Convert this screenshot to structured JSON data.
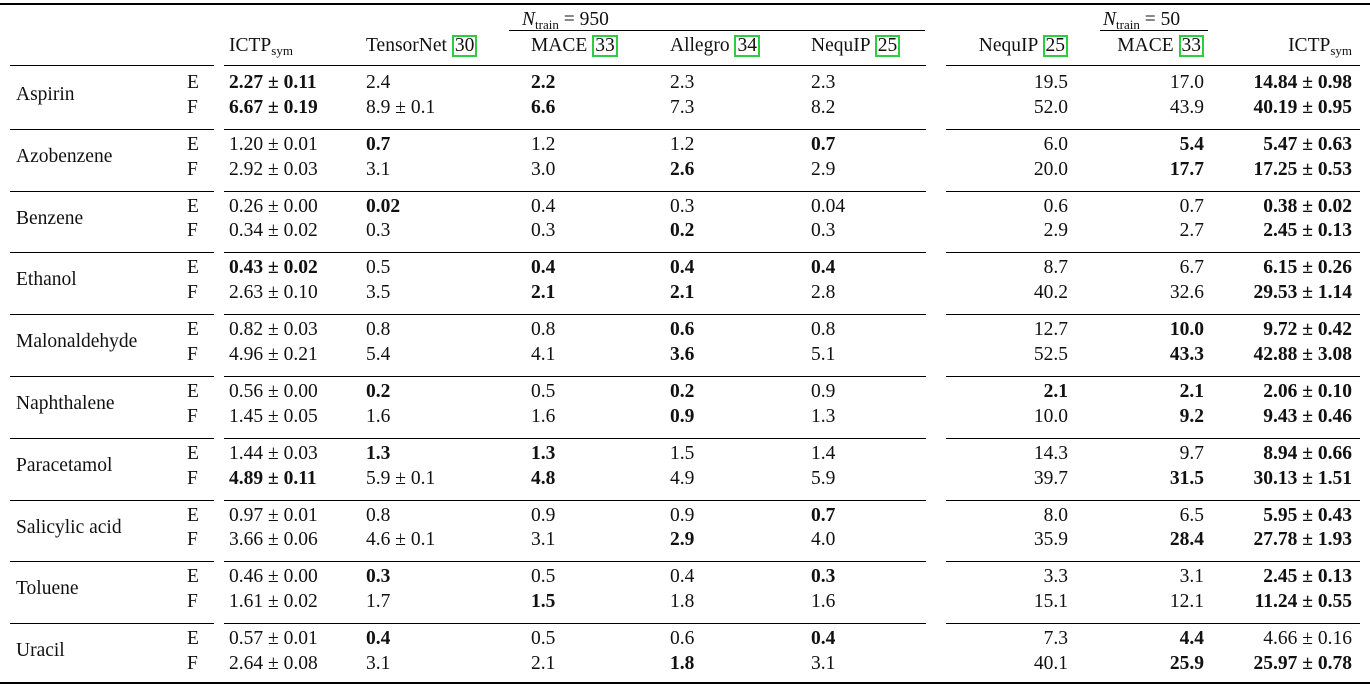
{
  "header": {
    "group_950": {
      "label_n": "N",
      "label_sub": "train",
      "label_rest": " = 950"
    },
    "group_50": {
      "label_n": "N",
      "label_sub": "train",
      "label_rest": " = 50"
    },
    "cols": [
      {
        "name": "ICTP",
        "sub": "sym",
        "ref": ""
      },
      {
        "name": "TensorNet ",
        "sub": "",
        "ref": "30"
      },
      {
        "name": "MACE ",
        "sub": "",
        "ref": "33"
      },
      {
        "name": "Allegro ",
        "sub": "",
        "ref": "34"
      },
      {
        "name": "NequIP ",
        "sub": "",
        "ref": "25"
      },
      {
        "name": "NequIP ",
        "sub": "",
        "ref": "25"
      },
      {
        "name": "MACE ",
        "sub": "",
        "ref": "33"
      },
      {
        "name": "ICTP",
        "sub": "sym",
        "ref": ""
      }
    ]
  },
  "molecules": [
    {
      "name": "Aspirin",
      "rows": [
        {
          "label": "E",
          "values": [
            "2.27 ± 0.11",
            "2.4",
            "2.2",
            "2.3",
            "2.3",
            "19.5",
            "17.0",
            "14.84 ± 0.98"
          ],
          "bold": [
            true,
            false,
            true,
            false,
            false,
            false,
            false,
            true
          ]
        },
        {
          "label": "F",
          "values": [
            "6.67 ± 0.19",
            "8.9 ± 0.1",
            "6.6",
            "7.3",
            "8.2",
            "52.0",
            "43.9",
            "40.19 ± 0.95"
          ],
          "bold": [
            true,
            false,
            true,
            false,
            false,
            false,
            false,
            true
          ]
        }
      ]
    },
    {
      "name": "Azobenzene",
      "rows": [
        {
          "label": "E",
          "values": [
            "1.20 ± 0.01",
            "0.7",
            "1.2",
            "1.2",
            "0.7",
            "6.0",
            "5.4",
            "5.47 ± 0.63"
          ],
          "bold": [
            false,
            true,
            false,
            false,
            true,
            false,
            true,
            true
          ]
        },
        {
          "label": "F",
          "values": [
            "2.92 ± 0.03",
            "3.1",
            "3.0",
            "2.6",
            "2.9",
            "20.0",
            "17.7",
            "17.25 ± 0.53"
          ],
          "bold": [
            false,
            false,
            false,
            true,
            false,
            false,
            true,
            true
          ]
        }
      ]
    },
    {
      "name": "Benzene",
      "rows": [
        {
          "label": "E",
          "values": [
            "0.26 ± 0.00",
            "0.02",
            "0.4",
            "0.3",
            "0.04",
            "0.6",
            "0.7",
            "0.38 ± 0.02"
          ],
          "bold": [
            false,
            true,
            false,
            false,
            false,
            false,
            false,
            true
          ]
        },
        {
          "label": "F",
          "values": [
            "0.34 ± 0.02",
            "0.3",
            "0.3",
            "0.2",
            "0.3",
            "2.9",
            "2.7",
            "2.45 ± 0.13"
          ],
          "bold": [
            false,
            false,
            false,
            true,
            false,
            false,
            false,
            true
          ]
        }
      ]
    },
    {
      "name": "Ethanol",
      "rows": [
        {
          "label": "E",
          "values": [
            "0.43 ± 0.02",
            "0.5",
            "0.4",
            "0.4",
            "0.4",
            "8.7",
            "6.7",
            "6.15 ± 0.26"
          ],
          "bold": [
            true,
            false,
            true,
            true,
            true,
            false,
            false,
            true
          ]
        },
        {
          "label": "F",
          "values": [
            "2.63 ± 0.10",
            "3.5",
            "2.1",
            "2.1",
            "2.8",
            "40.2",
            "32.6",
            "29.53 ± 1.14"
          ],
          "bold": [
            false,
            false,
            true,
            true,
            false,
            false,
            false,
            true
          ]
        }
      ]
    },
    {
      "name": "Malonaldehyde",
      "rows": [
        {
          "label": "E",
          "values": [
            "0.82 ± 0.03",
            "0.8",
            "0.8",
            "0.6",
            "0.8",
            "12.7",
            "10.0",
            "9.72 ± 0.42"
          ],
          "bold": [
            false,
            false,
            false,
            true,
            false,
            false,
            true,
            true
          ]
        },
        {
          "label": "F",
          "values": [
            "4.96 ± 0.21",
            "5.4",
            "4.1",
            "3.6",
            "5.1",
            "52.5",
            "43.3",
            "42.88 ± 3.08"
          ],
          "bold": [
            false,
            false,
            false,
            true,
            false,
            false,
            true,
            true
          ]
        }
      ]
    },
    {
      "name": "Naphthalene",
      "rows": [
        {
          "label": "E",
          "values": [
            "0.56 ± 0.00",
            "0.2",
            "0.5",
            "0.2",
            "0.9",
            "2.1",
            "2.1",
            "2.06 ± 0.10"
          ],
          "bold": [
            false,
            true,
            false,
            true,
            false,
            true,
            true,
            true
          ]
        },
        {
          "label": "F",
          "values": [
            "1.45 ± 0.05",
            "1.6",
            "1.6",
            "0.9",
            "1.3",
            "10.0",
            "9.2",
            "9.43 ± 0.46"
          ],
          "bold": [
            false,
            false,
            false,
            true,
            false,
            false,
            true,
            true
          ]
        }
      ]
    },
    {
      "name": "Paracetamol",
      "rows": [
        {
          "label": "E",
          "values": [
            "1.44 ± 0.03",
            "1.3",
            "1.3",
            "1.5",
            "1.4",
            "14.3",
            "9.7",
            "8.94 ± 0.66"
          ],
          "bold": [
            false,
            true,
            true,
            false,
            false,
            false,
            false,
            true
          ]
        },
        {
          "label": "F",
          "values": [
            "4.89 ± 0.11",
            "5.9 ± 0.1",
            "4.8",
            "4.9",
            "5.9",
            "39.7",
            "31.5",
            "30.13 ± 1.51"
          ],
          "bold": [
            true,
            false,
            true,
            false,
            false,
            false,
            true,
            true
          ]
        }
      ]
    },
    {
      "name": "Salicylic acid",
      "rows": [
        {
          "label": "E",
          "values": [
            "0.97 ± 0.01",
            "0.8",
            "0.9",
            "0.9",
            "0.7",
            "8.0",
            "6.5",
            "5.95 ± 0.43"
          ],
          "bold": [
            false,
            false,
            false,
            false,
            true,
            false,
            false,
            true
          ]
        },
        {
          "label": "F",
          "values": [
            "3.66 ± 0.06",
            "4.6 ± 0.1",
            "3.1",
            "2.9",
            "4.0",
            "35.9",
            "28.4",
            "27.78 ± 1.93"
          ],
          "bold": [
            false,
            false,
            false,
            true,
            false,
            false,
            true,
            true
          ]
        }
      ]
    },
    {
      "name": "Toluene",
      "rows": [
        {
          "label": "E",
          "values": [
            "0.46 ± 0.00",
            "0.3",
            "0.5",
            "0.4",
            "0.3",
            "3.3",
            "3.1",
            "2.45 ± 0.13"
          ],
          "bold": [
            false,
            true,
            false,
            false,
            true,
            false,
            false,
            true
          ]
        },
        {
          "label": "F",
          "values": [
            "1.61 ± 0.02",
            "1.7",
            "1.5",
            "1.8",
            "1.6",
            "15.1",
            "12.1",
            "11.24 ± 0.55"
          ],
          "bold": [
            false,
            false,
            true,
            false,
            false,
            false,
            false,
            true
          ]
        }
      ]
    },
    {
      "name": "Uracil",
      "rows": [
        {
          "label": "E",
          "values": [
            "0.57 ± 0.01",
            "0.4",
            "0.5",
            "0.6",
            "0.4",
            "7.3",
            "4.4",
            "4.66 ± 0.16"
          ],
          "bold": [
            false,
            true,
            false,
            false,
            true,
            false,
            true,
            false
          ]
        },
        {
          "label": "F",
          "values": [
            "2.64 ± 0.08",
            "3.1",
            "2.1",
            "1.8",
            "3.1",
            "40.1",
            "25.9",
            "25.97 ± 0.78"
          ],
          "bold": [
            false,
            false,
            false,
            true,
            false,
            false,
            true,
            true
          ]
        }
      ]
    }
  ]
}
